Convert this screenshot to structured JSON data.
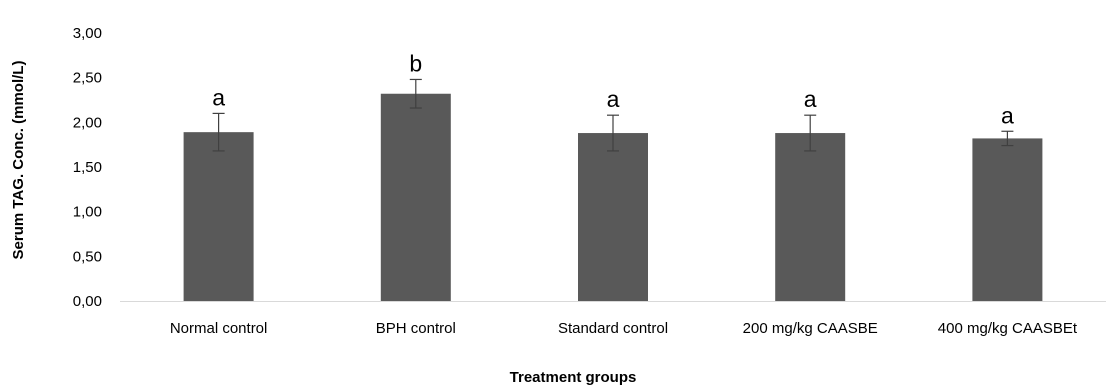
{
  "chart_data": {
    "type": "bar",
    "xlabel": "Treatment groups",
    "ylabel": "Serum TAG. Conc. (mmol/L)",
    "categories": [
      "Normal control",
      "BPH control",
      "Standard control",
      "200 mg/kg CAASBE",
      "400 mg/kg CAASBEt"
    ],
    "values": [
      1.89,
      2.32,
      1.88,
      1.88,
      1.82
    ],
    "error": [
      0.21,
      0.16,
      0.2,
      0.2,
      0.08
    ],
    "significance_letters": [
      "a",
      "b",
      "a",
      "a",
      "a"
    ],
    "ylim": [
      0,
      3
    ],
    "yticks": [
      "0,00",
      "0,50",
      "1,00",
      "1,50",
      "2,00",
      "2,50",
      "3,00"
    ],
    "ytick_values": [
      0,
      0.5,
      1,
      1.5,
      2,
      2.5,
      3
    ],
    "grid": false,
    "legend": "none",
    "bar_color": "#595959",
    "errorbar_color": "#404040",
    "axis_color": "#d9d9d9"
  }
}
